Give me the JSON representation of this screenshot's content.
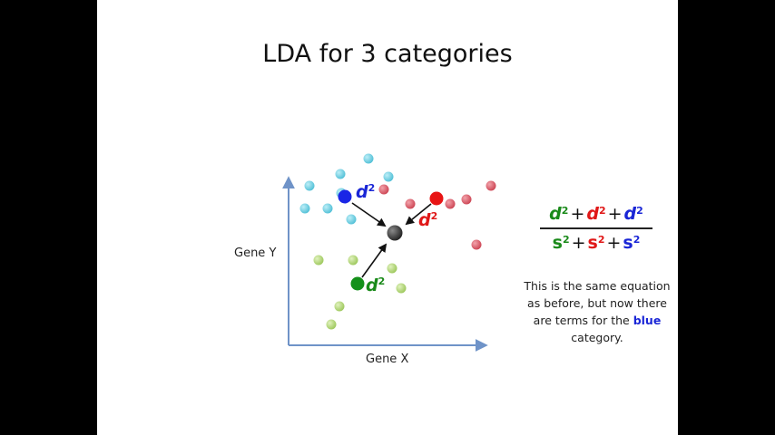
{
  "slide": {
    "title": "LDA for 3 categories",
    "x_axis_label": "Gene X",
    "y_axis_label": "Gene Y"
  },
  "distance_labels": {
    "blue": {
      "d": "d",
      "exp": "2"
    },
    "red": {
      "d": "d",
      "exp": "2"
    },
    "green": {
      "d": "d",
      "exp": "2"
    }
  },
  "formula": {
    "numerator": [
      {
        "sym": "d",
        "exp": "2",
        "color": "green"
      },
      {
        "op": "+"
      },
      {
        "sym": "d",
        "exp": "2",
        "color": "red"
      },
      {
        "op": "+"
      },
      {
        "sym": "d",
        "exp": "2",
        "color": "blue"
      }
    ],
    "denominator": [
      {
        "sym": "s",
        "exp": "2",
        "color": "green"
      },
      {
        "op": "+"
      },
      {
        "sym": "s",
        "exp": "2",
        "color": "red"
      },
      {
        "op": "+"
      },
      {
        "sym": "s",
        "exp": "2",
        "color": "blue"
      }
    ]
  },
  "note": {
    "before": "This is the same equation as before, but now there are terms for the",
    "keyword": "blue",
    "after": "category."
  },
  "colors": {
    "cyan_points": "#5ec9de",
    "red_points": "#d9505f",
    "green_points": "#a9d06a",
    "blue_centroid": "#1a26e6",
    "red_centroid": "#e81414",
    "green_centroid": "#14901a",
    "overall_centroid": "#333333",
    "axis": "#6f93c8"
  }
}
